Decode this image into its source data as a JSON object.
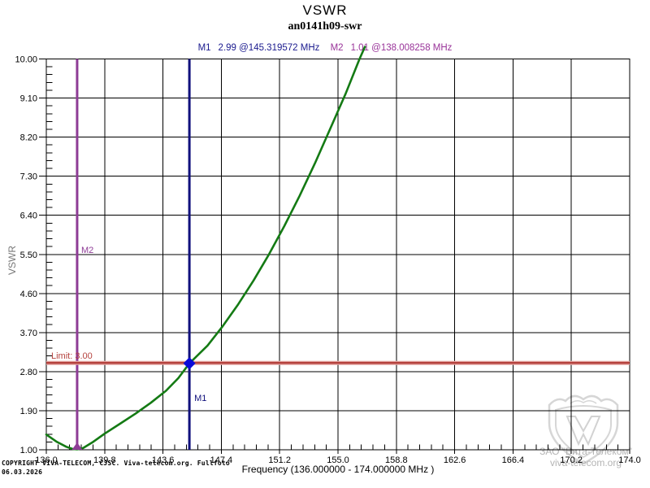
{
  "header": {
    "title": "VSWR",
    "subtitle": "an0141h09-swr"
  },
  "chart_data": {
    "type": "line",
    "title": "VSWR",
    "subtitle": "an0141h09-swr",
    "xlabel": "Frequency (136.000000 - 174.000000 MHz )",
    "ylabel": "VSWR",
    "xlim": [
      136.0,
      174.0
    ],
    "ylim": [
      1.0,
      10.0
    ],
    "x_ticks": [
      136.0,
      139.8,
      143.6,
      147.4,
      151.2,
      155.0,
      158.8,
      162.6,
      166.4,
      170.2,
      174.0
    ],
    "x_tick_labels": [
      "136.0",
      "139.8",
      "143.6",
      "147.4",
      "151.2",
      "155.0",
      "158.8",
      "162.6",
      "166.4",
      "170.2",
      "174.0"
    ],
    "y_ticks": [
      1.0,
      1.9,
      2.8,
      3.7,
      4.6,
      5.5,
      6.4,
      7.3,
      8.2,
      9.1,
      10.0
    ],
    "y_tick_labels": [
      "1.00",
      "1.90",
      "2.80",
      "3.70",
      "4.60",
      "5.50",
      "6.40",
      "7.30",
      "8.20",
      "9.10",
      "10.00"
    ],
    "minor_subdivisions": 5,
    "grid": true,
    "grid_color": "#000000",
    "series": [
      {
        "name": "VSWR",
        "color": "#147a14",
        "points": [
          [
            136.0,
            1.35
          ],
          [
            136.7,
            1.18
          ],
          [
            137.3,
            1.07
          ],
          [
            137.7,
            1.02
          ],
          [
            138.008,
            1.01
          ],
          [
            138.4,
            1.04
          ],
          [
            139.0,
            1.17
          ],
          [
            139.8,
            1.37
          ],
          [
            140.8,
            1.6
          ],
          [
            141.8,
            1.83
          ],
          [
            142.8,
            2.08
          ],
          [
            143.8,
            2.36
          ],
          [
            144.6,
            2.65
          ],
          [
            145.32,
            2.99
          ],
          [
            146.5,
            3.4
          ],
          [
            147.5,
            3.85
          ],
          [
            148.5,
            4.35
          ],
          [
            149.5,
            4.9
          ],
          [
            150.5,
            5.5
          ],
          [
            151.5,
            6.15
          ],
          [
            152.5,
            6.85
          ],
          [
            153.5,
            7.6
          ],
          [
            154.5,
            8.4
          ],
          [
            155.5,
            9.2
          ],
          [
            156.4,
            10.0
          ],
          [
            156.75,
            10.28
          ]
        ]
      }
    ],
    "limit_line": {
      "value": 3.0,
      "label": "Limit: 3.00",
      "color": "#b5423e",
      "halo_color": "#e2a19d"
    },
    "markers": [
      {
        "id": "M1",
        "freq": 145.319572,
        "vswr": 2.99,
        "readout": "2.99 @145.319572 MHz",
        "line_color": "#10107c",
        "point_color": "#0a0ad8",
        "shape": "diamond"
      },
      {
        "id": "M2",
        "freq": 138.008258,
        "vswr": 1.01,
        "readout": "1.01 @138.008258 MHz",
        "line_color": "#8e3c96",
        "point_color": "#8e3c96",
        "shape": "triangle"
      }
    ]
  },
  "footer": {
    "copyright_line1": "COPYRIGHT VIVA-TELECOM, CJSC. Viva-telecom.org. Fullfoto",
    "copyright_line2": "06.03.2026"
  },
  "watermark": {
    "line1": "ЗАО \"Вита-Телеком\"",
    "line2": "viva-telecom.org",
    "color": "#b4b4b4"
  }
}
